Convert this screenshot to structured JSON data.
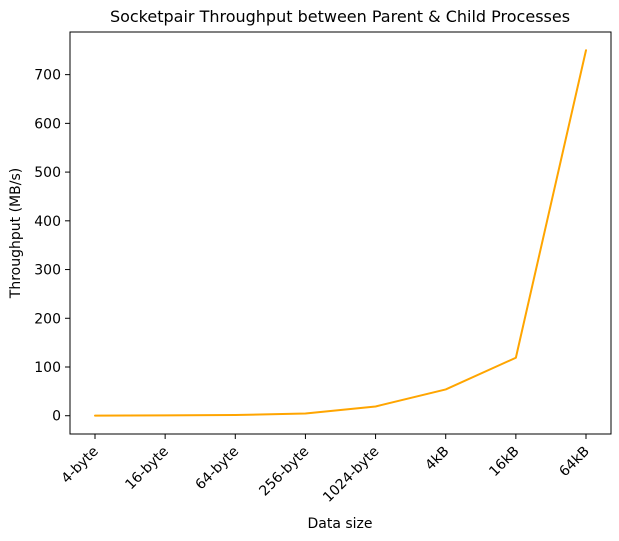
{
  "chart_data": {
    "type": "line",
    "title": "Socketpair Throughput between Parent & Child Processes",
    "xlabel": "Data size",
    "ylabel": "Throughput (MB/s)",
    "categories": [
      "4-byte",
      "16-byte",
      "64-byte",
      "256-byte",
      "1024-byte",
      "4kB",
      "16kB",
      "64kB"
    ],
    "series": [
      {
        "values": [
          0.3,
          0.8,
          1.5,
          4.5,
          19,
          54,
          119,
          750
        ],
        "color": "#FFA500"
      }
    ],
    "ylim": [
      -37.5,
      787.5
    ],
    "yticks": [
      0,
      100,
      200,
      300,
      400,
      500,
      600,
      700
    ],
    "grid": false
  }
}
